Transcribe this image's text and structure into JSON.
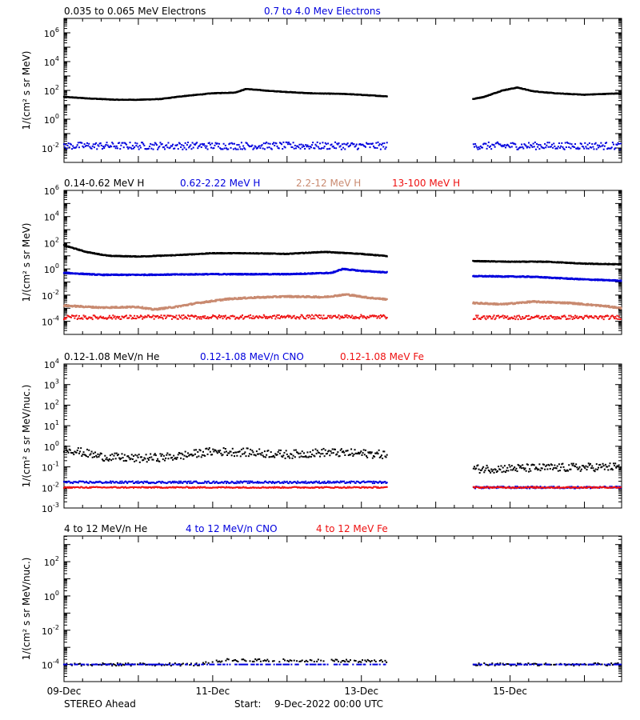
{
  "footer": {
    "spacecraft": "STEREO Ahead",
    "start_label": "Start:",
    "start_value": "9-Dec-2022 00:00 UTC"
  },
  "colors": {
    "black": "#000000",
    "blue": "#0000dd",
    "tan": "#c98a70",
    "red": "#ee1111"
  },
  "chart_data": [
    {
      "type": "scatter",
      "ylabel": "1/(cm² s sr MeV)",
      "yscale": "log",
      "ylim_exp": [
        -3,
        7
      ],
      "yticks": [
        {
          "base": "10",
          "exp": "-2",
          "v": -2
        },
        {
          "base": "10",
          "exp": "0",
          "v": 0
        },
        {
          "base": "10",
          "exp": "2",
          "v": 2
        },
        {
          "base": "10",
          "exp": "4",
          "v": 4
        },
        {
          "base": "10",
          "exp": "6",
          "v": 6
        }
      ],
      "xlim_days": [
        9.0,
        16.5
      ],
      "data_gap": [
        13.35,
        14.5
      ],
      "legend": [
        {
          "name": "0.035 to 0.065 MeV Electrons",
          "color": "#000000"
        },
        {
          "name": "0.7 to 4.0 Mev Electrons",
          "color": "#0000dd"
        }
      ],
      "series": [
        {
          "name": "0.035 to 0.065 MeV Electrons",
          "color": "#000000",
          "scatter": 0.02,
          "points": [
            [
              9.0,
              1.55
            ],
            [
              9.3,
              1.45
            ],
            [
              9.7,
              1.35
            ],
            [
              10.0,
              1.35
            ],
            [
              10.3,
              1.4
            ],
            [
              10.6,
              1.6
            ],
            [
              11.0,
              1.8
            ],
            [
              11.3,
              1.85
            ],
            [
              11.45,
              2.1
            ],
            [
              11.8,
              1.95
            ],
            [
              12.3,
              1.8
            ],
            [
              12.8,
              1.75
            ],
            [
              13.3,
              1.6
            ],
            [
              14.5,
              1.4
            ],
            [
              14.65,
              1.55
            ],
            [
              14.9,
              2.0
            ],
            [
              15.1,
              2.2
            ],
            [
              15.3,
              1.95
            ],
            [
              15.6,
              1.8
            ],
            [
              16.0,
              1.7
            ],
            [
              16.5,
              1.8
            ]
          ]
        },
        {
          "name": "0.7 to 4.0 Mev Electrons",
          "color": "#0000dd",
          "scatter": 0.25,
          "dots": true,
          "points": [
            [
              9.0,
              -1.85
            ],
            [
              13.3,
              -1.85
            ],
            [
              14.5,
              -1.85
            ],
            [
              16.5,
              -1.85
            ]
          ]
        }
      ]
    },
    {
      "type": "scatter",
      "ylabel": "1/(cm² s sr MeV)",
      "yscale": "log",
      "ylim_exp": [
        -5,
        6
      ],
      "yticks": [
        {
          "base": "10",
          "exp": "-4",
          "v": -4
        },
        {
          "base": "10",
          "exp": "-2",
          "v": -2
        },
        {
          "base": "10",
          "exp": "0",
          "v": 0
        },
        {
          "base": "10",
          "exp": "2",
          "v": 2
        },
        {
          "base": "10",
          "exp": "4",
          "v": 4
        },
        {
          "base": "10",
          "exp": "6",
          "v": 6
        }
      ],
      "xlim_days": [
        9.0,
        16.5
      ],
      "data_gap": [
        13.35,
        14.5
      ],
      "legend": [
        {
          "name": "0.14-0.62 MeV H",
          "color": "#000000"
        },
        {
          "name": "0.62-2.22 MeV H",
          "color": "#0000dd"
        },
        {
          "name": "2.2-12 MeV H",
          "color": "#c98a70"
        },
        {
          "name": "13-100 MeV H",
          "color": "#ee1111"
        }
      ],
      "series": [
        {
          "name": "0.14-0.62 MeV H",
          "color": "#000000",
          "scatter": 0.03,
          "points": [
            [
              9.0,
              1.8
            ],
            [
              9.3,
              1.3
            ],
            [
              9.6,
              1.0
            ],
            [
              10.0,
              0.95
            ],
            [
              10.5,
              1.05
            ],
            [
              11.0,
              1.2
            ],
            [
              11.5,
              1.2
            ],
            [
              12.0,
              1.15
            ],
            [
              12.5,
              1.3
            ],
            [
              13.0,
              1.15
            ],
            [
              13.3,
              1.0
            ],
            [
              14.5,
              0.6
            ],
            [
              15.0,
              0.55
            ],
            [
              15.5,
              0.55
            ],
            [
              16.0,
              0.4
            ],
            [
              16.5,
              0.35
            ]
          ]
        },
        {
          "name": "0.62-2.22 MeV H",
          "color": "#0000dd",
          "scatter": 0.04,
          "points": [
            [
              9.0,
              -0.3
            ],
            [
              9.5,
              -0.45
            ],
            [
              10.0,
              -0.45
            ],
            [
              11.0,
              -0.4
            ],
            [
              12.0,
              -0.4
            ],
            [
              12.6,
              -0.3
            ],
            [
              12.75,
              0.0
            ],
            [
              13.0,
              -0.15
            ],
            [
              13.3,
              -0.25
            ],
            [
              14.5,
              -0.55
            ],
            [
              15.3,
              -0.6
            ],
            [
              16.0,
              -0.8
            ],
            [
              16.5,
              -0.9
            ]
          ]
        },
        {
          "name": "2.2-12 MeV H",
          "color": "#c98a70",
          "scatter": 0.06,
          "points": [
            [
              9.0,
              -2.8
            ],
            [
              9.5,
              -2.95
            ],
            [
              10.0,
              -2.9
            ],
            [
              10.2,
              -3.1
            ],
            [
              10.5,
              -2.9
            ],
            [
              10.8,
              -2.6
            ],
            [
              11.2,
              -2.3
            ],
            [
              11.5,
              -2.2
            ],
            [
              12.0,
              -2.1
            ],
            [
              12.5,
              -2.15
            ],
            [
              12.8,
              -1.95
            ],
            [
              13.1,
              -2.2
            ],
            [
              13.3,
              -2.3
            ],
            [
              14.5,
              -2.6
            ],
            [
              14.9,
              -2.7
            ],
            [
              15.3,
              -2.5
            ],
            [
              15.8,
              -2.6
            ],
            [
              16.3,
              -2.85
            ],
            [
              16.5,
              -3.0
            ]
          ]
        },
        {
          "name": "13-100 MeV H",
          "color": "#ee1111",
          "scatter": 0.15,
          "dots": true,
          "points": [
            [
              9.0,
              -3.7
            ],
            [
              13.3,
              -3.65
            ],
            [
              14.5,
              -3.7
            ],
            [
              16.5,
              -3.7
            ]
          ]
        }
      ]
    },
    {
      "type": "scatter",
      "ylabel": "1/(cm² s sr MeV/nuc.)",
      "yscale": "log",
      "ylim_exp": [
        -3,
        4
      ],
      "yticks": [
        {
          "base": "10",
          "exp": "-3",
          "v": -3
        },
        {
          "base": "10",
          "exp": "-2",
          "v": -2
        },
        {
          "base": "10",
          "exp": "-1",
          "v": -1
        },
        {
          "base": "10",
          "exp": "0",
          "v": 0
        },
        {
          "base": "10",
          "exp": "1",
          "v": 1
        },
        {
          "base": "10",
          "exp": "2",
          "v": 2
        },
        {
          "base": "10",
          "exp": "3",
          "v": 3
        },
        {
          "base": "10",
          "exp": "4",
          "v": 4
        }
      ],
      "xlim_days": [
        9.0,
        16.5
      ],
      "data_gap": [
        13.35,
        14.5
      ],
      "legend": [
        {
          "name": "0.12-1.08 MeV/n He",
          "color": "#000000"
        },
        {
          "name": "0.12-1.08 MeV/n CNO",
          "color": "#0000dd"
        },
        {
          "name": "0.12-1.08 MeV Fe",
          "color": "#ee1111"
        }
      ],
      "series": [
        {
          "name": "0.12-1.08 MeV/n He",
          "color": "#000000",
          "scatter": 0.2,
          "dots": true,
          "points": [
            [
              9.0,
              -0.1
            ],
            [
              9.5,
              -0.5
            ],
            [
              10.0,
              -0.6
            ],
            [
              10.5,
              -0.5
            ],
            [
              11.0,
              -0.25
            ],
            [
              11.5,
              -0.3
            ],
            [
              12.0,
              -0.4
            ],
            [
              12.5,
              -0.3
            ],
            [
              13.0,
              -0.35
            ],
            [
              13.3,
              -0.4
            ],
            [
              14.5,
              -1.1
            ],
            [
              15.5,
              -1.05
            ],
            [
              16.5,
              -1.0
            ]
          ]
        },
        {
          "name": "0.12-1.08 MeV/n CNO",
          "color": "#0000dd",
          "scatter": 0.05,
          "dots": true,
          "points": [
            [
              9.0,
              -1.75
            ],
            [
              13.3,
              -1.75
            ],
            [
              14.5,
              -2.0
            ],
            [
              16.5,
              -2.0
            ]
          ]
        },
        {
          "name": "0.12-1.08 MeV Fe",
          "color": "#ee1111",
          "scatter": 0.03,
          "dots": true,
          "points": [
            [
              9.0,
              -2.0
            ],
            [
              13.3,
              -2.0
            ],
            [
              14.5,
              -2.0
            ],
            [
              16.5,
              -2.0
            ]
          ]
        }
      ]
    },
    {
      "type": "scatter",
      "ylabel": "1/(cm² s sr MeV/nuc.)",
      "yscale": "log",
      "ylim_exp": [
        -5,
        3.5
      ],
      "yticks": [
        {
          "base": "10",
          "exp": "-4",
          "v": -4
        },
        {
          "base": "10",
          "exp": "-2",
          "v": -2
        },
        {
          "base": "10",
          "exp": "0",
          "v": 0
        },
        {
          "base": "10",
          "exp": "2",
          "v": 2
        }
      ],
      "xlim_days": [
        9.0,
        16.5
      ],
      "data_gap": [
        13.35,
        14.5
      ],
      "legend": [
        {
          "name": "4 to 12 MeV/n He",
          "color": "#000000"
        },
        {
          "name": "4 to 12 MeV/n CNO",
          "color": "#0000dd"
        },
        {
          "name": "4 to 12 MeV Fe",
          "color": "#ee1111"
        }
      ],
      "series": [
        {
          "name": "4 to 12 MeV/n He",
          "color": "#000000",
          "scatter": 0.08,
          "dots": true,
          "sparse": true,
          "points": [
            [
              9.0,
              -4.0
            ],
            [
              10.8,
              -4.0
            ],
            [
              11.2,
              -3.75
            ],
            [
              13.3,
              -3.8
            ],
            [
              14.5,
              -4.0
            ],
            [
              16.5,
              -4.0
            ]
          ]
        },
        {
          "name": "4 to 12 MeV/n CNO",
          "color": "#0000dd",
          "scatter": 0.0,
          "dots": true,
          "sparse": true,
          "points": [
            [
              9.0,
              -4.0
            ],
            [
              13.3,
              -4.0
            ],
            [
              14.5,
              -4.0
            ],
            [
              16.5,
              -4.0
            ]
          ]
        }
      ]
    }
  ],
  "x_axis": {
    "ticks": [
      {
        "label": "09-Dec",
        "v": 9.0
      },
      {
        "label": "11-Dec",
        "v": 11.0
      },
      {
        "label": "13-Dec",
        "v": 13.0
      },
      {
        "label": "15-Dec",
        "v": 15.0
      }
    ]
  }
}
